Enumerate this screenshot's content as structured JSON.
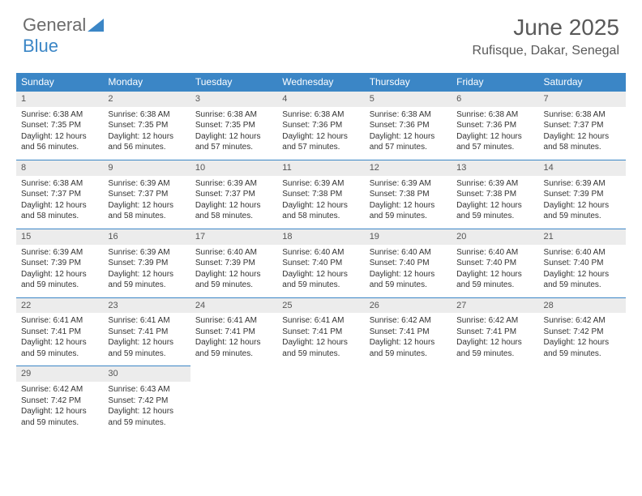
{
  "brand": {
    "part1": "General",
    "part2": "Blue"
  },
  "title": "June 2025",
  "location": "Rufisque, Dakar, Senegal",
  "colors": {
    "header_bg": "#3b86c6",
    "header_text": "#ffffff",
    "daynum_bg": "#ececec",
    "row_divider": "#3b86c6",
    "page_bg": "#ffffff",
    "title_color": "#595959",
    "body_text": "#333333"
  },
  "weekdays": [
    "Sunday",
    "Monday",
    "Tuesday",
    "Wednesday",
    "Thursday",
    "Friday",
    "Saturday"
  ],
  "weeks": [
    [
      {
        "n": "1",
        "sr": "Sunrise: 6:38 AM",
        "ss": "Sunset: 7:35 PM",
        "dl": "Daylight: 12 hours and 56 minutes."
      },
      {
        "n": "2",
        "sr": "Sunrise: 6:38 AM",
        "ss": "Sunset: 7:35 PM",
        "dl": "Daylight: 12 hours and 56 minutes."
      },
      {
        "n": "3",
        "sr": "Sunrise: 6:38 AM",
        "ss": "Sunset: 7:35 PM",
        "dl": "Daylight: 12 hours and 57 minutes."
      },
      {
        "n": "4",
        "sr": "Sunrise: 6:38 AM",
        "ss": "Sunset: 7:36 PM",
        "dl": "Daylight: 12 hours and 57 minutes."
      },
      {
        "n": "5",
        "sr": "Sunrise: 6:38 AM",
        "ss": "Sunset: 7:36 PM",
        "dl": "Daylight: 12 hours and 57 minutes."
      },
      {
        "n": "6",
        "sr": "Sunrise: 6:38 AM",
        "ss": "Sunset: 7:36 PM",
        "dl": "Daylight: 12 hours and 57 minutes."
      },
      {
        "n": "7",
        "sr": "Sunrise: 6:38 AM",
        "ss": "Sunset: 7:37 PM",
        "dl": "Daylight: 12 hours and 58 minutes."
      }
    ],
    [
      {
        "n": "8",
        "sr": "Sunrise: 6:38 AM",
        "ss": "Sunset: 7:37 PM",
        "dl": "Daylight: 12 hours and 58 minutes."
      },
      {
        "n": "9",
        "sr": "Sunrise: 6:39 AM",
        "ss": "Sunset: 7:37 PM",
        "dl": "Daylight: 12 hours and 58 minutes."
      },
      {
        "n": "10",
        "sr": "Sunrise: 6:39 AM",
        "ss": "Sunset: 7:37 PM",
        "dl": "Daylight: 12 hours and 58 minutes."
      },
      {
        "n": "11",
        "sr": "Sunrise: 6:39 AM",
        "ss": "Sunset: 7:38 PM",
        "dl": "Daylight: 12 hours and 58 minutes."
      },
      {
        "n": "12",
        "sr": "Sunrise: 6:39 AM",
        "ss": "Sunset: 7:38 PM",
        "dl": "Daylight: 12 hours and 59 minutes."
      },
      {
        "n": "13",
        "sr": "Sunrise: 6:39 AM",
        "ss": "Sunset: 7:38 PM",
        "dl": "Daylight: 12 hours and 59 minutes."
      },
      {
        "n": "14",
        "sr": "Sunrise: 6:39 AM",
        "ss": "Sunset: 7:39 PM",
        "dl": "Daylight: 12 hours and 59 minutes."
      }
    ],
    [
      {
        "n": "15",
        "sr": "Sunrise: 6:39 AM",
        "ss": "Sunset: 7:39 PM",
        "dl": "Daylight: 12 hours and 59 minutes."
      },
      {
        "n": "16",
        "sr": "Sunrise: 6:39 AM",
        "ss": "Sunset: 7:39 PM",
        "dl": "Daylight: 12 hours and 59 minutes."
      },
      {
        "n": "17",
        "sr": "Sunrise: 6:40 AM",
        "ss": "Sunset: 7:39 PM",
        "dl": "Daylight: 12 hours and 59 minutes."
      },
      {
        "n": "18",
        "sr": "Sunrise: 6:40 AM",
        "ss": "Sunset: 7:40 PM",
        "dl": "Daylight: 12 hours and 59 minutes."
      },
      {
        "n": "19",
        "sr": "Sunrise: 6:40 AM",
        "ss": "Sunset: 7:40 PM",
        "dl": "Daylight: 12 hours and 59 minutes."
      },
      {
        "n": "20",
        "sr": "Sunrise: 6:40 AM",
        "ss": "Sunset: 7:40 PM",
        "dl": "Daylight: 12 hours and 59 minutes."
      },
      {
        "n": "21",
        "sr": "Sunrise: 6:40 AM",
        "ss": "Sunset: 7:40 PM",
        "dl": "Daylight: 12 hours and 59 minutes."
      }
    ],
    [
      {
        "n": "22",
        "sr": "Sunrise: 6:41 AM",
        "ss": "Sunset: 7:41 PM",
        "dl": "Daylight: 12 hours and 59 minutes."
      },
      {
        "n": "23",
        "sr": "Sunrise: 6:41 AM",
        "ss": "Sunset: 7:41 PM",
        "dl": "Daylight: 12 hours and 59 minutes."
      },
      {
        "n": "24",
        "sr": "Sunrise: 6:41 AM",
        "ss": "Sunset: 7:41 PM",
        "dl": "Daylight: 12 hours and 59 minutes."
      },
      {
        "n": "25",
        "sr": "Sunrise: 6:41 AM",
        "ss": "Sunset: 7:41 PM",
        "dl": "Daylight: 12 hours and 59 minutes."
      },
      {
        "n": "26",
        "sr": "Sunrise: 6:42 AM",
        "ss": "Sunset: 7:41 PM",
        "dl": "Daylight: 12 hours and 59 minutes."
      },
      {
        "n": "27",
        "sr": "Sunrise: 6:42 AM",
        "ss": "Sunset: 7:41 PM",
        "dl": "Daylight: 12 hours and 59 minutes."
      },
      {
        "n": "28",
        "sr": "Sunrise: 6:42 AM",
        "ss": "Sunset: 7:42 PM",
        "dl": "Daylight: 12 hours and 59 minutes."
      }
    ],
    [
      {
        "n": "29",
        "sr": "Sunrise: 6:42 AM",
        "ss": "Sunset: 7:42 PM",
        "dl": "Daylight: 12 hours and 59 minutes."
      },
      {
        "n": "30",
        "sr": "Sunrise: 6:43 AM",
        "ss": "Sunset: 7:42 PM",
        "dl": "Daylight: 12 hours and 59 minutes."
      },
      null,
      null,
      null,
      null,
      null
    ]
  ]
}
